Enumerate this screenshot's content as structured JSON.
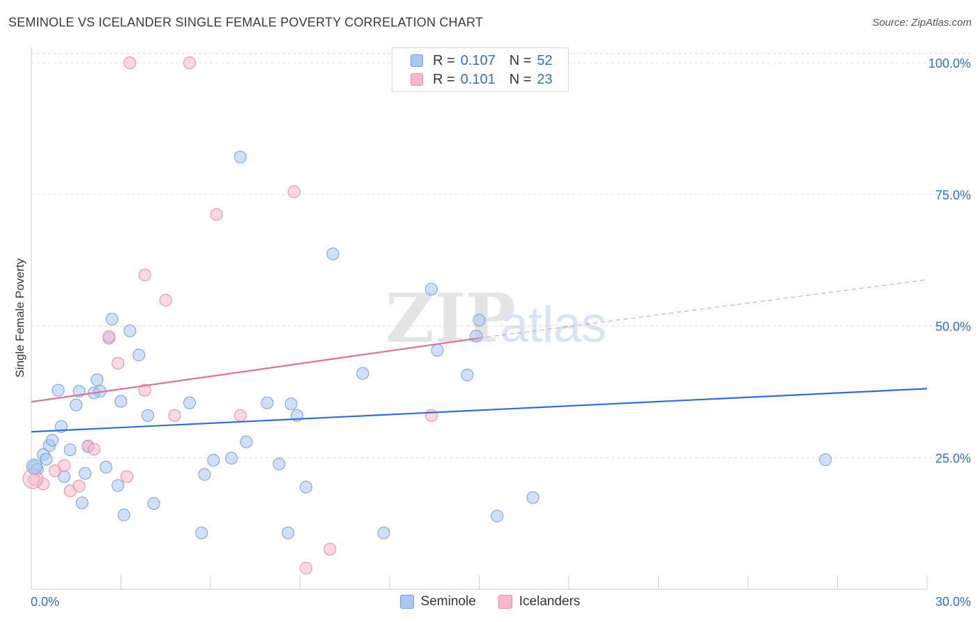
{
  "title": "SEMINOLE VS ICELANDER SINGLE FEMALE POVERTY CORRELATION CHART",
  "source": "Source: ZipAtlas.com",
  "watermark": {
    "zip": "ZIP",
    "atlas": "atlas"
  },
  "legend": {
    "series": [
      {
        "r_label": "R =",
        "r_value": "0.107",
        "n_label": "N =",
        "n_value": "52",
        "color": "#a9c8f0",
        "border": "#6f9fe0"
      },
      {
        "r_label": "R =",
        "r_value": "0.101",
        "n_label": "N =",
        "n_value": "23",
        "color": "#f7b8cb",
        "border": "#e88aa8"
      }
    ]
  },
  "chart_data": {
    "type": "scatter",
    "title": "SEMINOLE VS ICELANDER SINGLE FEMALE POVERTY CORRELATION CHART",
    "xlabel": "",
    "ylabel": "Single Female Poverty",
    "xlim": [
      0,
      30
    ],
    "ylim": [
      0,
      102
    ],
    "x_tick_labels": [
      "0.0%",
      "30.0%"
    ],
    "y_ticks": [
      25,
      50,
      75,
      100
    ],
    "y_tick_labels": [
      "25.0%",
      "50.0%",
      "75.0%",
      "100.0%"
    ],
    "grid": true,
    "legend_position": "top-center",
    "series": [
      {
        "name": "Seminole",
        "color": "#a9c8f0",
        "stroke": "#6f9fe0",
        "line_color": "#2e6fcf",
        "trend": {
          "x": [
            0,
            30
          ],
          "y": [
            29.9,
            38.1
          ]
        },
        "points": [
          [
            0.1,
            23.3
          ],
          [
            0.2,
            22.8
          ],
          [
            0.4,
            25.6
          ],
          [
            0.5,
            24.7
          ],
          [
            0.6,
            27.3
          ],
          [
            0.7,
            28.3
          ],
          [
            0.9,
            37.8
          ],
          [
            1.0,
            30.9
          ],
          [
            1.1,
            21.4
          ],
          [
            1.3,
            26.5
          ],
          [
            1.5,
            35.0
          ],
          [
            1.6,
            37.6
          ],
          [
            1.7,
            16.4
          ],
          [
            1.8,
            22.0
          ],
          [
            1.9,
            27.1
          ],
          [
            2.1,
            37.3
          ],
          [
            2.2,
            39.8
          ],
          [
            2.3,
            37.6
          ],
          [
            2.5,
            23.2
          ],
          [
            2.7,
            51.3
          ],
          [
            2.6,
            47.7
          ],
          [
            2.9,
            19.7
          ],
          [
            3.0,
            35.7
          ],
          [
            3.1,
            14.1
          ],
          [
            3.3,
            49.1
          ],
          [
            3.6,
            44.5
          ],
          [
            3.9,
            33.0
          ],
          [
            4.1,
            16.3
          ],
          [
            5.3,
            35.4
          ],
          [
            5.7,
            10.7
          ],
          [
            5.8,
            21.8
          ],
          [
            6.1,
            24.5
          ],
          [
            6.7,
            24.9
          ],
          [
            7.0,
            82.1
          ],
          [
            7.2,
            28.0
          ],
          [
            7.9,
            35.4
          ],
          [
            8.3,
            23.8
          ],
          [
            8.6,
            10.7
          ],
          [
            8.7,
            35.2
          ],
          [
            8.9,
            33.0
          ],
          [
            9.2,
            19.4
          ],
          [
            10.1,
            63.7
          ],
          [
            11.1,
            41.0
          ],
          [
            11.8,
            10.7
          ],
          [
            13.4,
            57.0
          ],
          [
            13.6,
            45.4
          ],
          [
            14.6,
            40.7
          ],
          [
            14.9,
            48.1
          ],
          [
            15.0,
            51.1
          ],
          [
            15.6,
            13.9
          ],
          [
            16.8,
            17.4
          ],
          [
            26.6,
            24.6
          ]
        ]
      },
      {
        "name": "Icelanders",
        "color": "#f7b8cb",
        "stroke": "#e88aa8",
        "line_color": "#e07098",
        "trend": {
          "x": [
            0,
            15
          ],
          "y": [
            35.6,
            47.7
          ]
        },
        "trend_extension": {
          "x": [
            15,
            30
          ],
          "y": [
            47.7,
            58.8
          ]
        },
        "points": [
          [
            0.1,
            20.8
          ],
          [
            0.4,
            20.0
          ],
          [
            0.8,
            22.5
          ],
          [
            1.1,
            23.5
          ],
          [
            1.3,
            18.7
          ],
          [
            1.6,
            19.6
          ],
          [
            1.9,
            27.2
          ],
          [
            2.1,
            26.6
          ],
          [
            2.6,
            48.0
          ],
          [
            2.9,
            42.9
          ],
          [
            3.2,
            21.4
          ],
          [
            3.3,
            100.0
          ],
          [
            3.8,
            37.8
          ],
          [
            3.8,
            59.7
          ],
          [
            4.5,
            54.9
          ],
          [
            4.8,
            33.0
          ],
          [
            5.3,
            100.0
          ],
          [
            6.2,
            71.2
          ],
          [
            7.0,
            33.0
          ],
          [
            8.8,
            75.5
          ],
          [
            9.2,
            4.0
          ],
          [
            10.0,
            7.6
          ],
          [
            13.4,
            33.0
          ]
        ]
      }
    ]
  }
}
